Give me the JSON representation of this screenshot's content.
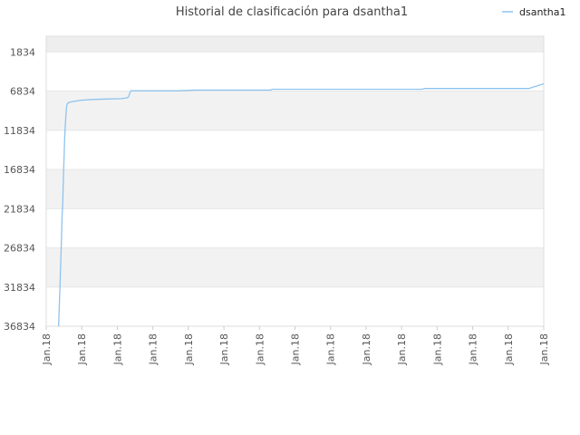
{
  "chart_data": {
    "type": "line",
    "title": "Historial de clasificación para dsantha1",
    "xlabel": "",
    "ylabel": "",
    "ylim": [
      1834,
      36834
    ],
    "y_reversed": true,
    "y_ticks": [
      "1834",
      "6834",
      "11834",
      "16834",
      "21834",
      "26834",
      "31834",
      "36834"
    ],
    "x_ticks": [
      "Jan.18",
      "Jan.18",
      "Jan.18",
      "Jan.18",
      "Jan.18",
      "Jan.18",
      "Jan.18",
      "Jan.18",
      "Jan.18",
      "Jan.18",
      "Jan.18",
      "Jan.18",
      "Jan.18",
      "Jan.18",
      "Jan.18"
    ],
    "grid": true,
    "banded_background": true,
    "legend_position": "top-right",
    "colors": {
      "line": "#8ec3ef",
      "band": "#f2f2f2",
      "grid": "#e6e6e6"
    },
    "series": [
      {
        "name": "dsantha1",
        "x": [
          0.025,
          0.027,
          0.028,
          0.029,
          0.03,
          0.031,
          0.032,
          0.033,
          0.034,
          0.035,
          0.036,
          0.037,
          0.038,
          0.039,
          0.04,
          0.041,
          0.042,
          0.043,
          0.045,
          0.05,
          0.06,
          0.07,
          0.09,
          0.12,
          0.15,
          0.162,
          0.165,
          0.17,
          0.2,
          0.265,
          0.3,
          0.45,
          0.455,
          0.6,
          0.755,
          0.76,
          0.88,
          0.97,
          0.975,
          1.0
        ],
        "values": [
          36834,
          33000,
          31000,
          29000,
          27000,
          25000,
          22500,
          21500,
          19000,
          17000,
          15000,
          13000,
          11500,
          10500,
          9500,
          8800,
          8500,
          8400,
          8300,
          8200,
          8100,
          8000,
          7900,
          7850,
          7800,
          7700,
          7600,
          6800,
          6800,
          6800,
          6700,
          6700,
          6600,
          6600,
          6600,
          6500,
          6500,
          6500,
          6400,
          5900
        ]
      }
    ]
  }
}
